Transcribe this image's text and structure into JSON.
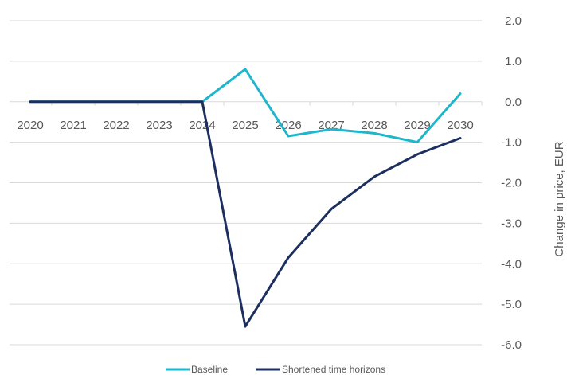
{
  "chart_data": {
    "type": "line",
    "title": "",
    "xlabel": "",
    "ylabel": "Change in price, EUR",
    "categories": [
      "2020",
      "2021",
      "2022",
      "2023",
      "2024",
      "2025",
      "2026",
      "2027",
      "2028",
      "2029",
      "2030"
    ],
    "ylim": [
      -6.0,
      2.0
    ],
    "yticks": [
      "2.0",
      "1.0",
      "0.0",
      "-1.0",
      "-2.0",
      "-3.0",
      "-4.0",
      "-5.0",
      "-6.0"
    ],
    "grid": true,
    "legend_position": "bottom",
    "series": [
      {
        "name": "Baseline",
        "color": "#1fb6cc",
        "values": [
          0,
          0,
          0,
          0,
          0,
          0.8,
          -0.85,
          -0.68,
          -0.78,
          -1.0,
          0.2
        ]
      },
      {
        "name": "Shortened time horizons",
        "color": "#1c2f5e",
        "values": [
          0,
          0,
          0,
          0,
          0,
          -5.55,
          -3.85,
          -2.65,
          -1.85,
          -1.3,
          -0.9
        ]
      }
    ]
  }
}
